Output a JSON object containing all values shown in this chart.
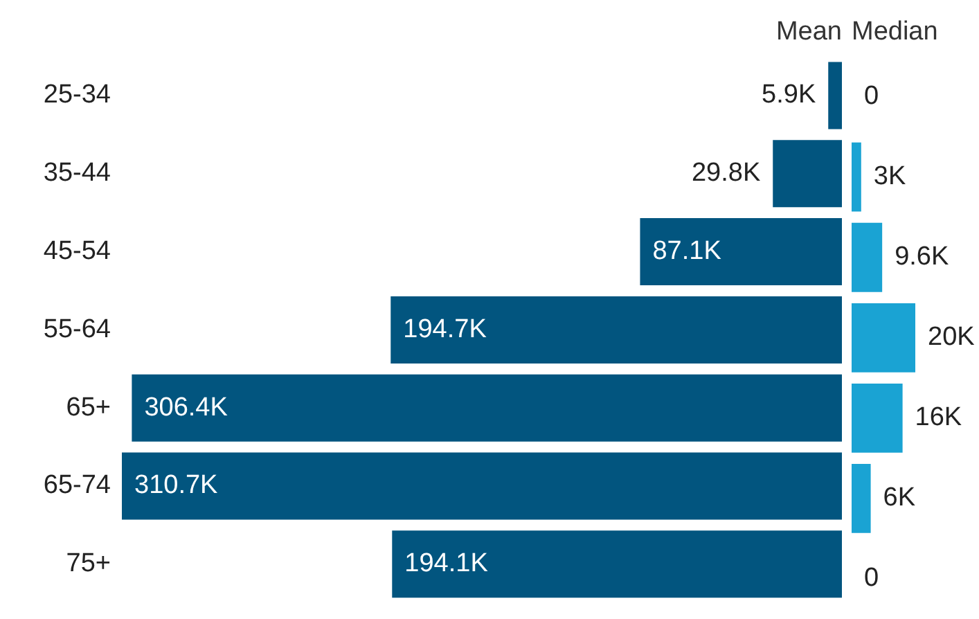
{
  "chart_data": [
    {
      "type": "bar",
      "orientation": "horizontal",
      "title": "Mean",
      "categories": [
        "25-34",
        "35-44",
        "45-54",
        "55-64",
        "65+",
        "65-74",
        "75+"
      ],
      "values": [
        5900,
        29800,
        87100,
        194700,
        306400,
        310700,
        194100
      ],
      "value_labels": [
        "5.9K",
        "29.8K",
        "87.1K",
        "194.7K",
        "306.4K",
        "310.7K",
        "194.1K"
      ],
      "color": "#02557f",
      "xlim": [
        310700,
        0
      ],
      "tick_labels": "y",
      "grid": false,
      "legend": false
    },
    {
      "type": "bar",
      "orientation": "horizontal",
      "title": "Median",
      "categories": [
        null,
        null,
        null,
        null,
        null,
        null,
        null
      ],
      "values": [
        0,
        3000,
        9600,
        20000,
        16000,
        6000,
        0
      ],
      "value_labels": [
        "0",
        "3K",
        "9.6K",
        "20K",
        "16K",
        "6K",
        "0"
      ],
      "color": "#1aa3d3",
      "tick_labels": false,
      "grid": false,
      "legend": false
    }
  ]
}
